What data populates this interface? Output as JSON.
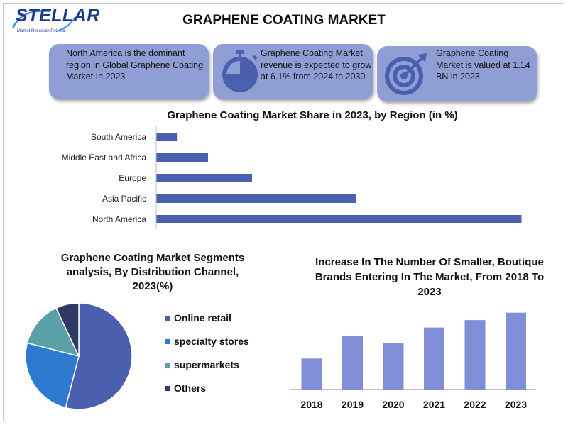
{
  "logo": {
    "name": "STELLAR",
    "tagline": "Market Research Pvt. Ltd."
  },
  "title": "GRAPHENE COATING MARKET",
  "cards": [
    {
      "text": "North America is the dominant region in Global Graphene Coating Market In 2023",
      "icon": ""
    },
    {
      "text": "Graphene Coating Market revenue is expected to grow at 6.1% from 2024 to 2030",
      "icon": "stopwatch-icon"
    },
    {
      "text": "Graphene Coating Market is valued at 1.14 BN in 2023",
      "icon": "target-icon"
    }
  ],
  "colors": {
    "card": "#8f9fd6",
    "bar": "#4a5fad",
    "column": "#7f8ed6",
    "pie": [
      "#4a5fad",
      "#2e7ad1",
      "#5aa0a6",
      "#2d3a63"
    ]
  },
  "chart_data": [
    {
      "type": "bar",
      "orientation": "horizontal",
      "title": "Graphene Coating  Market Share in 2023, by Region (in %)",
      "categories": [
        "South America",
        "Middle East and Africa",
        "Europe",
        "Asia Pacific",
        "North America"
      ],
      "values": [
        4,
        10,
        18.5,
        38.5,
        70.5
      ],
      "xlim": [
        0,
        74
      ],
      "grid": false,
      "legend": "none"
    },
    {
      "type": "pie",
      "title": "Graphene Coating  Market Segments analysis, By Distribution Channel, 2023(%)",
      "labels": [
        "Online retail",
        "specialty stores",
        "supermarkets",
        "Others"
      ],
      "values": [
        54,
        25,
        14,
        7
      ],
      "legend": "right"
    },
    {
      "type": "bar",
      "title": "Increase In The Number Of Smaller, Boutique Brands Entering In The Market, From 2018 To 2023",
      "categories": [
        "2018",
        "2019",
        "2020",
        "2021",
        "2022",
        "2023"
      ],
      "values": [
        46,
        80,
        69,
        92,
        103,
        114
      ],
      "ylim": [
        0,
        120
      ],
      "grid": false,
      "legend": "none"
    }
  ]
}
